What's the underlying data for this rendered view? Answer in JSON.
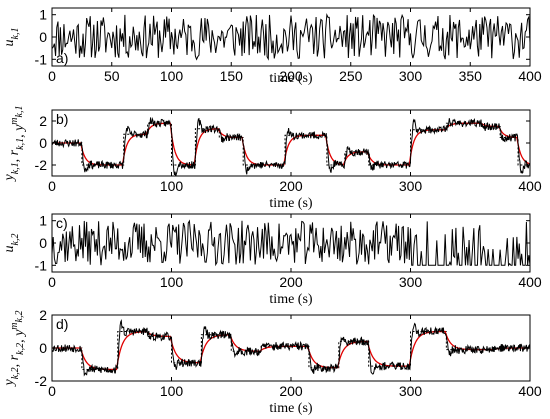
{
  "chart_data": [
    {
      "type": "line",
      "panel_label": "a)",
      "ylabel": "u_{k,1}",
      "xlabel": "time (s)",
      "xlim": [
        0,
        400
      ],
      "ylim": [
        -1.3,
        1.3
      ],
      "xticks": [
        0,
        50,
        100,
        150,
        200,
        250,
        300,
        350,
        400
      ],
      "yticks": [
        -1,
        0,
        1
      ],
      "series": [
        {
          "color": "#000000",
          "kind": "random_signal",
          "points": 400,
          "amplitude": 1.0,
          "seed": 11,
          "x": [
            0,
            400
          ]
        }
      ]
    },
    {
      "type": "line",
      "panel_label": "b)",
      "ylabel": "y_{k,1}, r_{k,1}, y^m_{k,1}",
      "xlabel": "time (s)",
      "xlim": [
        0,
        400
      ],
      "ylim": [
        -3,
        3
      ],
      "xticks": [
        0,
        100,
        200,
        300,
        400
      ],
      "yticks": [
        -2,
        0,
        2
      ],
      "reference_steps": [
        {
          "x0": 0,
          "x1": 25,
          "y": 0
        },
        {
          "x0": 25,
          "x1": 60,
          "y": -2
        },
        {
          "x0": 60,
          "x1": 80,
          "y": 0.8
        },
        {
          "x0": 80,
          "x1": 100,
          "y": 1.8
        },
        {
          "x0": 100,
          "x1": 120,
          "y": -2
        },
        {
          "x0": 120,
          "x1": 140,
          "y": 1.3
        },
        {
          "x0": 140,
          "x1": 160,
          "y": 0.5
        },
        {
          "x0": 160,
          "x1": 195,
          "y": -2
        },
        {
          "x0": 195,
          "x1": 230,
          "y": 0.7
        },
        {
          "x0": 230,
          "x1": 245,
          "y": -2
        },
        {
          "x0": 245,
          "x1": 265,
          "y": -0.8
        },
        {
          "x0": 265,
          "x1": 300,
          "y": -2
        },
        {
          "x0": 300,
          "x1": 330,
          "y": 1.2
        },
        {
          "x0": 330,
          "x1": 360,
          "y": 1.8
        },
        {
          "x0": 360,
          "x1": 375,
          "y": 1.5
        },
        {
          "x0": 375,
          "x1": 390,
          "y": 0.5
        },
        {
          "x0": 390,
          "x1": 400,
          "y": -2
        }
      ],
      "series": [
        {
          "color": "#000000",
          "kind": "reference_dotted"
        },
        {
          "color": "#e00000",
          "kind": "model_response",
          "tau": 4
        },
        {
          "color": "#000000",
          "kind": "noisy_output",
          "noise": 0.35,
          "seed": 23
        }
      ]
    },
    {
      "type": "line",
      "panel_label": "c)",
      "ylabel": "u_{k,2}",
      "xlabel": "time (s)",
      "xlim": [
        0,
        400
      ],
      "ylim": [
        -1.3,
        1.3
      ],
      "xticks": [
        0,
        100,
        200,
        300,
        400
      ],
      "yticks": [
        -1,
        0,
        1
      ],
      "series": [
        {
          "color": "#000000",
          "kind": "random_signal",
          "points": 400,
          "amplitude": 1.0,
          "seed": 37,
          "x": [
            0,
            400
          ]
        }
      ]
    },
    {
      "type": "line",
      "panel_label": "d)",
      "ylabel": "y_{k,2}, r_{k,2}, y^m_{k,2}",
      "xlabel": "time (s)",
      "xlim": [
        0,
        400
      ],
      "ylim": [
        -2,
        2
      ],
      "xticks": [
        0,
        100,
        200,
        300,
        400
      ],
      "yticks": [
        -2,
        0,
        2
      ],
      "reference_steps": [
        {
          "x0": 0,
          "x1": 25,
          "y": 0
        },
        {
          "x0": 25,
          "x1": 55,
          "y": -1.3
        },
        {
          "x0": 55,
          "x1": 80,
          "y": 1.0
        },
        {
          "x0": 80,
          "x1": 100,
          "y": 0.7
        },
        {
          "x0": 100,
          "x1": 125,
          "y": -0.9
        },
        {
          "x0": 125,
          "x1": 150,
          "y": 0.8
        },
        {
          "x0": 150,
          "x1": 175,
          "y": -0.2
        },
        {
          "x0": 175,
          "x1": 215,
          "y": 0.1
        },
        {
          "x0": 215,
          "x1": 240,
          "y": -1.2
        },
        {
          "x0": 240,
          "x1": 265,
          "y": 0.4
        },
        {
          "x0": 265,
          "x1": 300,
          "y": -1.1
        },
        {
          "x0": 300,
          "x1": 330,
          "y": 1.0
        },
        {
          "x0": 330,
          "x1": 370,
          "y": -0.1
        },
        {
          "x0": 370,
          "x1": 400,
          "y": 0
        }
      ],
      "series": [
        {
          "color": "#000000",
          "kind": "reference_dotted"
        },
        {
          "color": "#e00000",
          "kind": "model_response",
          "tau": 5
        },
        {
          "color": "#000000",
          "kind": "noisy_output",
          "noise": 0.25,
          "seed": 53
        }
      ]
    }
  ]
}
